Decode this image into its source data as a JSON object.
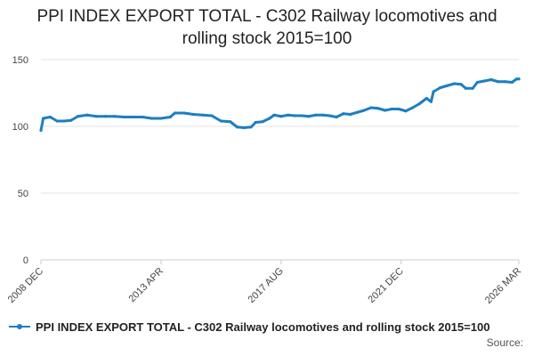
{
  "chart_data": {
    "type": "line",
    "title": "PPI INDEX EXPORT TOTAL - C302 Railway locomotives and rolling stock 2015=100",
    "title_lines": [
      "PPI INDEX EXPORT TOTAL - C302 Railway locomotives and",
      "rolling stock 2015=100"
    ],
    "xlabel": "",
    "ylabel": "",
    "ylim": [
      0,
      150
    ],
    "yticks": [
      0,
      50,
      100,
      150
    ],
    "xlim": [
      "2008-12",
      "2026-03"
    ],
    "xtick_labels": [
      "2008 DEC",
      "2013 APR",
      "2017 AUG",
      "2021 DEC",
      "2026 MAR"
    ],
    "xtick_dates": [
      "2008-12",
      "2013-04",
      "2017-08",
      "2021-12",
      "2026-03"
    ],
    "grid": "horizontal",
    "legend_position": "bottom",
    "line_color": "#1c7fc2",
    "series": [
      {
        "name": "PPI INDEX EXPORT TOTAL - C302 Railway locomotives and rolling stock 2015=100",
        "points": [
          [
            "2008-12",
            97
          ],
          [
            "2009-01",
            106
          ],
          [
            "2009-04",
            107
          ],
          [
            "2009-07",
            104
          ],
          [
            "2009-10",
            104
          ],
          [
            "2010-01",
            104.5
          ],
          [
            "2010-04",
            107.5
          ],
          [
            "2010-08",
            108.5
          ],
          [
            "2010-12",
            107.5
          ],
          [
            "2011-04",
            107.5
          ],
          [
            "2011-08",
            107.5
          ],
          [
            "2011-12",
            107
          ],
          [
            "2012-04",
            107
          ],
          [
            "2012-08",
            107
          ],
          [
            "2012-12",
            106
          ],
          [
            "2013-04",
            106
          ],
          [
            "2013-08",
            107
          ],
          [
            "2013-10",
            110
          ],
          [
            "2014-02",
            110
          ],
          [
            "2014-06",
            109
          ],
          [
            "2014-10",
            108.5
          ],
          [
            "2015-02",
            108
          ],
          [
            "2015-06",
            104
          ],
          [
            "2015-10",
            103.5
          ],
          [
            "2016-01",
            99.5
          ],
          [
            "2016-04",
            99
          ],
          [
            "2016-07",
            99.5
          ],
          [
            "2016-09",
            103
          ],
          [
            "2016-12",
            103.5
          ],
          [
            "2017-03",
            106
          ],
          [
            "2017-05",
            108.5
          ],
          [
            "2017-08",
            107.5
          ],
          [
            "2017-11",
            108.5
          ],
          [
            "2018-02",
            108
          ],
          [
            "2018-05",
            108
          ],
          [
            "2018-08",
            107.5
          ],
          [
            "2018-11",
            108.5
          ],
          [
            "2019-02",
            108.5
          ],
          [
            "2019-05",
            108
          ],
          [
            "2019-08",
            107
          ],
          [
            "2019-11",
            109.5
          ],
          [
            "2020-02",
            109
          ],
          [
            "2020-05",
            110.5
          ],
          [
            "2020-08",
            112
          ],
          [
            "2020-11",
            114
          ],
          [
            "2021-02",
            113.5
          ],
          [
            "2021-05",
            112
          ],
          [
            "2021-08",
            113
          ],
          [
            "2021-11",
            113
          ],
          [
            "2022-02",
            111.5
          ],
          [
            "2022-05",
            114
          ],
          [
            "2022-08",
            117
          ],
          [
            "2022-11",
            121
          ],
          [
            "2023-01",
            118.5
          ],
          [
            "2023-02",
            126
          ],
          [
            "2023-05",
            129
          ],
          [
            "2023-08",
            130.5
          ],
          [
            "2023-11",
            132
          ],
          [
            "2024-02",
            131.5
          ],
          [
            "2024-04",
            128.5
          ],
          [
            "2024-07",
            128.5
          ],
          [
            "2024-09",
            133
          ],
          [
            "2024-12",
            134
          ],
          [
            "2025-03",
            135
          ],
          [
            "2025-06",
            133.5
          ],
          [
            "2025-09",
            133.5
          ],
          [
            "2025-12",
            133
          ],
          [
            "2026-02",
            135.5
          ],
          [
            "2026-03",
            135.5
          ]
        ]
      }
    ]
  },
  "legend": {
    "label": "PPI INDEX EXPORT TOTAL - C302 Railway locomotives and rolling stock 2015=100"
  },
  "source_label": "Source:"
}
